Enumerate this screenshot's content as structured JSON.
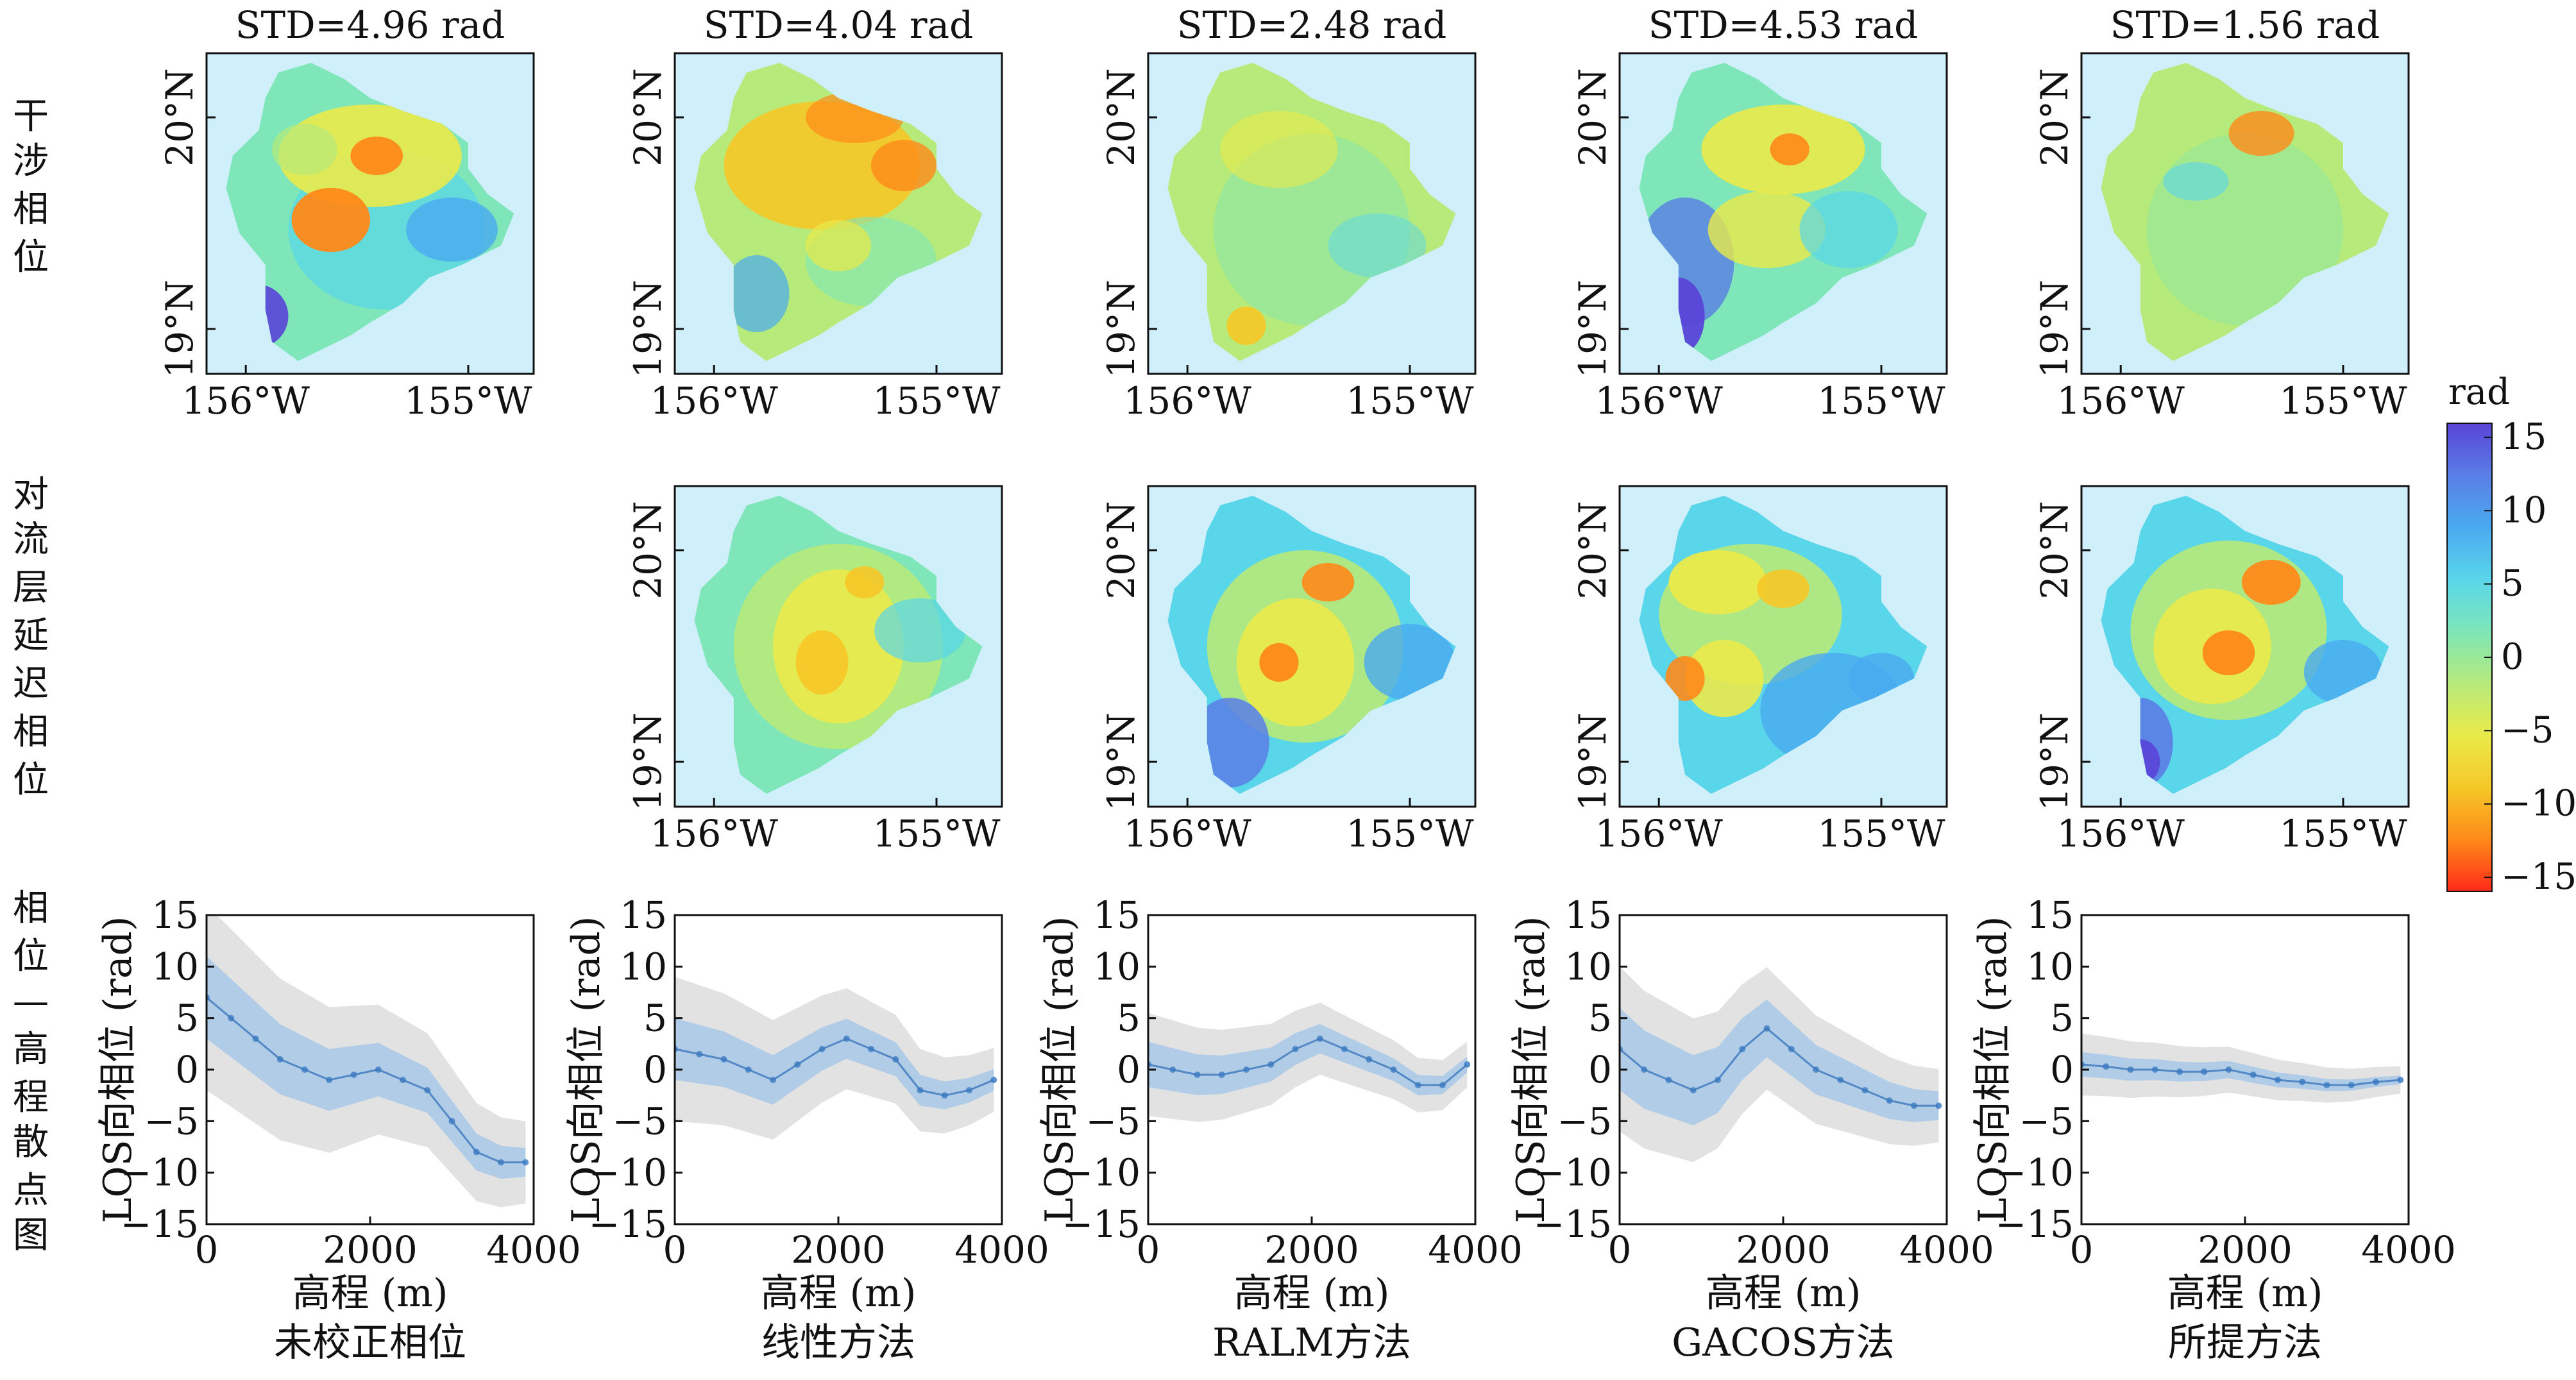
{
  "row_labels": [
    "干涉相位",
    "对流层延迟相位",
    "相位—高程散点图"
  ],
  "columns": [
    {
      "std_title": "STD=4.96 rad",
      "method": "未校正相位",
      "has_delay_map": false
    },
    {
      "std_title": "STD=4.04 rad",
      "method": "线性方法",
      "has_delay_map": true
    },
    {
      "std_title": "STD=2.48 rad",
      "method": "RALM方法",
      "has_delay_map": true
    },
    {
      "std_title": "STD=4.53 rad",
      "method": "GACOS方法",
      "has_delay_map": true
    },
    {
      "std_title": "STD=1.56 rad",
      "method": "所提方法",
      "has_delay_map": true
    }
  ],
  "map_axes": {
    "x_ticks": [
      "156°W",
      "155°W"
    ],
    "y_ticks": [
      "20°N",
      "19°N"
    ],
    "ocean_color": "#cfeffa",
    "colormap": [
      "#ff2a1a",
      "#ff8a1a",
      "#f6c828",
      "#eaea4a",
      "#b6ea7a",
      "#7ee6b8",
      "#5ad6ea",
      "#4aaaf0",
      "#5a7ee6",
      "#5a44d8"
    ]
  },
  "colorbar": {
    "unit": "rad",
    "ticks": [
      "15",
      "10",
      "5",
      "0",
      "−5",
      "−10",
      "−15"
    ],
    "range": [
      -15,
      15
    ]
  },
  "chart_data": {
    "type": "scatter",
    "xlabel": "高程 (m)",
    "ylabel": "LOS向相位 (rad)",
    "xlim": [
      0,
      4000
    ],
    "ylim": [
      -15,
      15
    ],
    "x_ticks": [
      "0",
      "2000",
      "4000"
    ],
    "y_ticks": [
      "15",
      "10",
      "5",
      "0",
      "−5",
      "−10",
      "−15"
    ],
    "series": [
      {
        "name": "未校正相位",
        "x": [
          0,
          300,
          600,
          900,
          1200,
          1500,
          1800,
          2100,
          2400,
          2700,
          3000,
          3300,
          3600,
          3900
        ],
        "y": [
          7,
          5,
          3,
          1,
          0,
          -1,
          -0.5,
          0,
          -1,
          -2,
          -5,
          -8,
          -9,
          -9
        ]
      },
      {
        "name": "线性方法",
        "x": [
          0,
          300,
          600,
          900,
          1200,
          1500,
          1800,
          2100,
          2400,
          2700,
          3000,
          3300,
          3600,
          3900
        ],
        "y": [
          2,
          1.5,
          1,
          0,
          -1,
          0.5,
          2,
          3,
          2,
          1,
          -2,
          -2.5,
          -2,
          -1
        ]
      },
      {
        "name": "RALM方法",
        "x": [
          0,
          300,
          600,
          900,
          1200,
          1500,
          1800,
          2100,
          2400,
          2700,
          3000,
          3300,
          3600,
          3900
        ],
        "y": [
          0.5,
          0,
          -0.5,
          -0.5,
          0,
          0.5,
          2,
          3,
          2,
          1,
          0,
          -1.5,
          -1.5,
          0.5
        ]
      },
      {
        "name": "GACOS方法",
        "x": [
          0,
          300,
          600,
          900,
          1200,
          1500,
          1800,
          2100,
          2400,
          2700,
          3000,
          3300,
          3600,
          3900
        ],
        "y": [
          2,
          0,
          -1,
          -2,
          -1,
          2,
          4,
          2,
          0,
          -1,
          -2,
          -3,
          -3.5,
          -3.5
        ]
      },
      {
        "name": "所提方法",
        "x": [
          0,
          300,
          600,
          900,
          1200,
          1500,
          1800,
          2100,
          2400,
          2700,
          3000,
          3300,
          3600,
          3900
        ],
        "y": [
          0.5,
          0.3,
          0,
          0,
          -0.2,
          -0.2,
          0,
          -0.5,
          -1,
          -1.2,
          -1.5,
          -1.5,
          -1.2,
          -1
        ]
      }
    ]
  }
}
